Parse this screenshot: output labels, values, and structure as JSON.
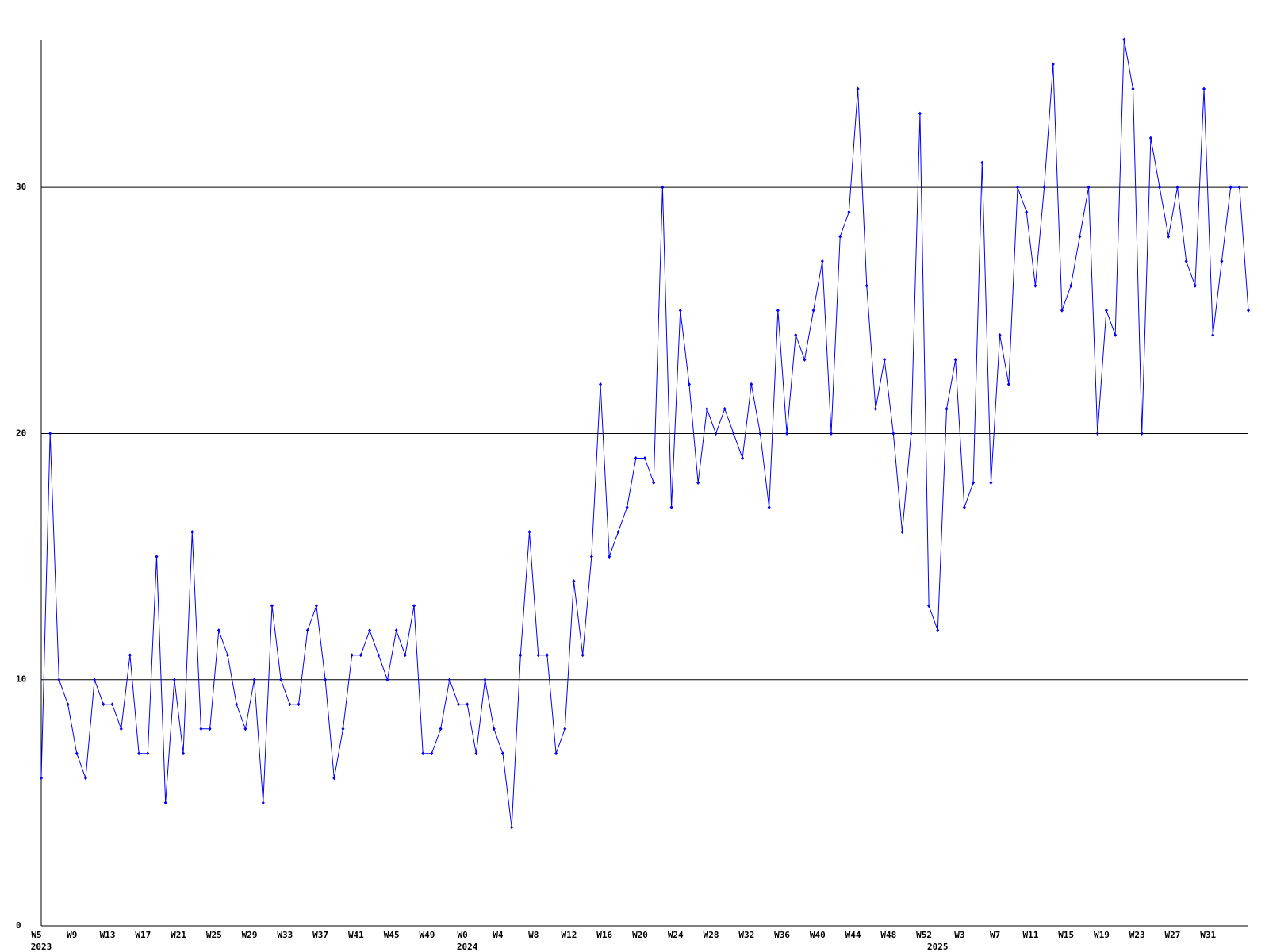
{
  "chart_data": {
    "type": "line",
    "categories": [
      "W5",
      null,
      null,
      null,
      "W9",
      null,
      null,
      null,
      "W13",
      null,
      null,
      null,
      "W17",
      null,
      null,
      null,
      "W21",
      null,
      null,
      null,
      "W25",
      null,
      null,
      null,
      "W29",
      null,
      null,
      null,
      "W33",
      null,
      null,
      null,
      "W37",
      null,
      null,
      null,
      "W41",
      null,
      null,
      null,
      "W45",
      null,
      null,
      null,
      "W49",
      null,
      null,
      null,
      "W0",
      null,
      null,
      null,
      "W4",
      null,
      null,
      null,
      "W8",
      null,
      null,
      null,
      "W12",
      null,
      null,
      null,
      "W16",
      null,
      null,
      null,
      "W20",
      null,
      null,
      null,
      "W24",
      null,
      null,
      null,
      "W28",
      null,
      null,
      null,
      "W32",
      null,
      null,
      null,
      "W36",
      null,
      null,
      null,
      "W40",
      null,
      null,
      null,
      "W44",
      null,
      null,
      null,
      "W48",
      null,
      null,
      null,
      "W52",
      null,
      null,
      null,
      "W3",
      null,
      null,
      null,
      "W7",
      null,
      null,
      null,
      "W11",
      null,
      null,
      null,
      "W15",
      null,
      null,
      null,
      "W19",
      null,
      null,
      null,
      "W23",
      null,
      null,
      null,
      "W27",
      null,
      null,
      null,
      "W31",
      null,
      null,
      null,
      null
    ],
    "year_categories": [
      "2023",
      null,
      null,
      null,
      null,
      null,
      null,
      null,
      null,
      null,
      null,
      null,
      null,
      null,
      null,
      null,
      null,
      null,
      null,
      null,
      null,
      null,
      null,
      null,
      null,
      null,
      null,
      null,
      null,
      null,
      null,
      null,
      null,
      null,
      null,
      null,
      null,
      null,
      null,
      null,
      null,
      null,
      null,
      null,
      null,
      null,
      null,
      null,
      "2024",
      null,
      null,
      null,
      null,
      null,
      null,
      null,
      null,
      null,
      null,
      null,
      null,
      null,
      null,
      null,
      null,
      null,
      null,
      null,
      null,
      null,
      null,
      null,
      null,
      null,
      null,
      null,
      null,
      null,
      null,
      null,
      null,
      null,
      null,
      null,
      null,
      null,
      null,
      null,
      null,
      null,
      null,
      null,
      null,
      null,
      null,
      null,
      null,
      null,
      null,
      null,
      null,
      "2025",
      null,
      null,
      null,
      null,
      null,
      null,
      null,
      null,
      null,
      null,
      null,
      null,
      null,
      null,
      null,
      null,
      null,
      null,
      null,
      null,
      null,
      null,
      null,
      null,
      null,
      null,
      null,
      null,
      null,
      null,
      null,
      null,
      null,
      null,
      null
    ],
    "series": [
      {
        "color": "#0000ff",
        "values": [
          6,
          20,
          10,
          9,
          7,
          6,
          10,
          9,
          9,
          8,
          11,
          7,
          7,
          15,
          5,
          10,
          7,
          16,
          8,
          8,
          12,
          11,
          9,
          8,
          10,
          5,
          13,
          10,
          9,
          9,
          12,
          13,
          10,
          6,
          8,
          11,
          11,
          12,
          11,
          10,
          12,
          11,
          13,
          7,
          7,
          8,
          10,
          9,
          9,
          7,
          10,
          8,
          7,
          4,
          11,
          16,
          11,
          11,
          7,
          8,
          14,
          11,
          15,
          22,
          15,
          16,
          17,
          19,
          19,
          18,
          30,
          17,
          25,
          22,
          18,
          21,
          20,
          21,
          20,
          19,
          22,
          20,
          17,
          25,
          20,
          24,
          23,
          25,
          27,
          20,
          28,
          29,
          34,
          26,
          21,
          23,
          20,
          16,
          20,
          33,
          13,
          12,
          21,
          23,
          17,
          18,
          31,
          18,
          24,
          22,
          30,
          29,
          26,
          30,
          35,
          25,
          26,
          28,
          30,
          20,
          25,
          24,
          36,
          34,
          20,
          32,
          30,
          28,
          30,
          27,
          26,
          34,
          24,
          27,
          30,
          30,
          25
        ]
      }
    ],
    "ylim": [
      0,
      36
    ],
    "yticks": [
      0,
      10,
      20,
      30
    ],
    "grid": true
  }
}
